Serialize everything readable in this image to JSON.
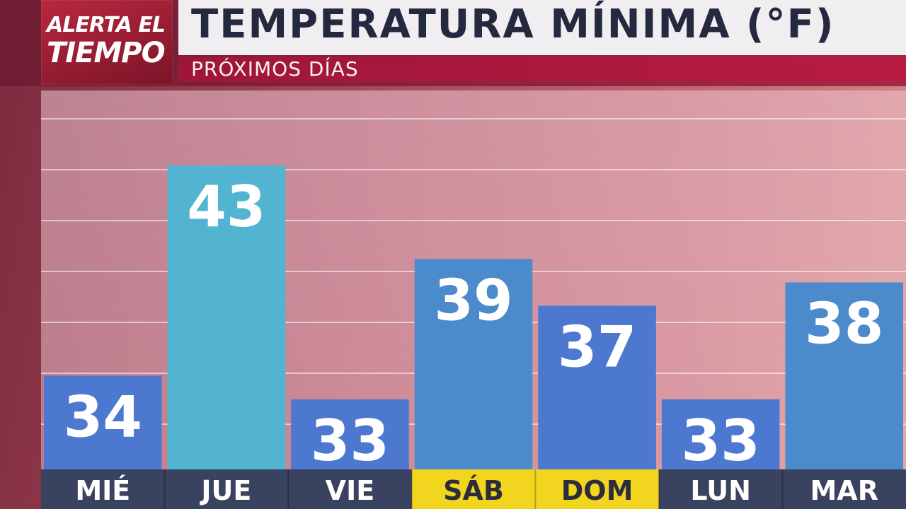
{
  "header": {
    "logo_line_1": "ALERTA EL",
    "logo_line_2": "TIEMPO",
    "title": "TEMPERATURA MÍNIMA (°F)",
    "subtitle": "PRÓXIMOS DÍAS"
  },
  "chart_data": {
    "type": "bar",
    "title": "TEMPERATURA MÍNIMA (°F)",
    "subtitle": "PRÓXIMOS DÍAS",
    "categories": [
      "MIÉ",
      "JUE",
      "VIE",
      "SÁB",
      "DOM",
      "LUN",
      "MAR"
    ],
    "values": [
      34,
      43,
      33,
      39,
      37,
      33,
      38
    ],
    "weekend": [
      false,
      false,
      false,
      true,
      true,
      false,
      false
    ],
    "ylim": [
      30,
      45
    ],
    "grid": true,
    "colors": {
      "bar_default": "#4d78cf",
      "bar_warm": "#52b4d0",
      "bar_mid": "#4b8bcc",
      "label_bg": "#39425e",
      "label_bg_weekend": "#f2d51f",
      "label_text": "#ffffff",
      "label_text_weekend": "#2c2c3c"
    },
    "bar_color_keys": [
      "bar_default",
      "bar_warm",
      "bar_default",
      "bar_mid",
      "bar_default",
      "bar_default",
      "bar_mid"
    ]
  }
}
